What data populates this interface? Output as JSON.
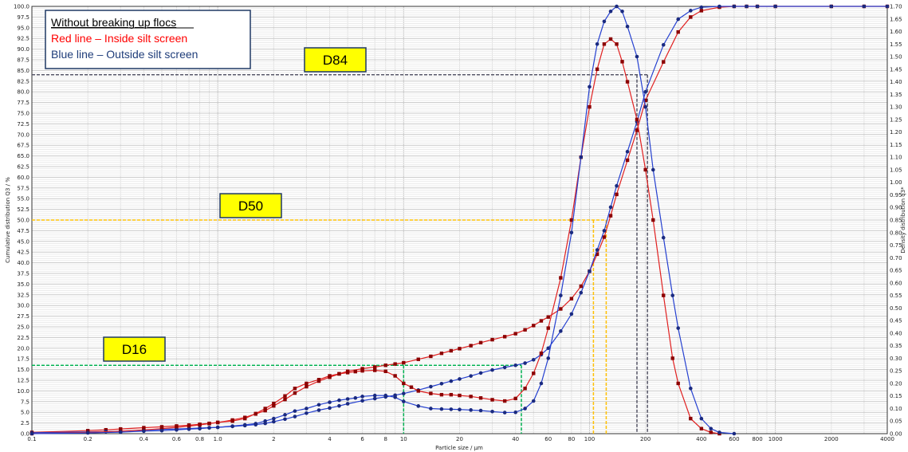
{
  "chart_data": {
    "type": "line",
    "xlabel": "Particle size / µm",
    "ylabel_left": "Cumulative distribution Q3 / %",
    "ylabel_right": "Density distribution q3*",
    "x_scale": "log",
    "xlim": [
      0.1,
      4000
    ],
    "ylim_left": [
      0,
      100
    ],
    "ylim_right": [
      0,
      1.7
    ],
    "x_tick_labels": [
      "0.1",
      "0.2",
      "0.4",
      "0.6",
      "0.8",
      "1.0",
      "2",
      "4",
      "6",
      "8",
      "10",
      "20",
      "40",
      "60",
      "80",
      "100",
      "200",
      "400",
      "600",
      "800",
      "1000",
      "2000",
      "4000"
    ],
    "legend": {
      "title": "Without breaking up flocs",
      "entries": [
        "Red line – Inside silt screen",
        "Blue line – Outside silt screen"
      ],
      "colors": [
        "#ff0000",
        "#1f3d7a"
      ]
    },
    "grid": true,
    "series": [
      {
        "kind": "cumulative",
        "axis": "left",
        "color": "#c00000",
        "marker": "square",
        "x": [
          0.1,
          0.2,
          0.25,
          0.3,
          0.4,
          0.5,
          0.6,
          0.7,
          0.8,
          0.9,
          1.0,
          1.2,
          1.4,
          1.6,
          1.8,
          2,
          2.3,
          2.6,
          3,
          3.5,
          4,
          4.5,
          5,
          6,
          7,
          8,
          9,
          10,
          12,
          14,
          16,
          18,
          20,
          23,
          26,
          30,
          35,
          40,
          45,
          50,
          55,
          60,
          70,
          80,
          90,
          100,
          110,
          120,
          130,
          140,
          160,
          180,
          200,
          250,
          300,
          350,
          400,
          500,
          600,
          700,
          800,
          1000,
          2000,
          3000,
          4000
        ],
        "y": [
          0.3,
          0.7,
          0.9,
          1.1,
          1.4,
          1.6,
          1.8,
          2.0,
          2.2,
          2.4,
          2.6,
          3.2,
          3.8,
          4.6,
          5.4,
          6.5,
          8.0,
          9.5,
          11.0,
          12.3,
          13.2,
          14.0,
          14.6,
          15.2,
          15.6,
          16.0,
          16.3,
          16.6,
          17.4,
          18.1,
          18.8,
          19.4,
          19.9,
          20.6,
          21.3,
          22.0,
          22.7,
          23.4,
          24.3,
          25.3,
          26.4,
          27.3,
          29.2,
          31.6,
          34.5,
          38.0,
          42.0,
          46.0,
          51.0,
          56.0,
          64.0,
          71.0,
          78.0,
          87.0,
          94.0,
          97.5,
          99.0,
          99.8,
          100,
          100,
          100,
          100,
          100,
          100,
          100
        ]
      },
      {
        "kind": "cumulative",
        "axis": "left",
        "color": "#1f3d7a",
        "marker": "circle",
        "x": [
          0.1,
          0.2,
          0.25,
          0.3,
          0.4,
          0.5,
          0.6,
          0.7,
          0.8,
          0.9,
          1.0,
          1.2,
          1.4,
          1.6,
          1.8,
          2,
          2.3,
          2.6,
          3,
          3.5,
          4,
          4.5,
          5,
          6,
          7,
          8,
          9,
          10,
          12,
          14,
          16,
          18,
          20,
          23,
          26,
          30,
          35,
          40,
          45,
          50,
          55,
          60,
          70,
          80,
          90,
          100,
          110,
          120,
          130,
          140,
          160,
          180,
          200,
          250,
          300,
          350,
          400,
          500,
          600,
          700,
          800,
          1000,
          2000,
          3000,
          4000
        ],
        "y": [
          0.2,
          0.4,
          0.5,
          0.6,
          0.8,
          1.0,
          1.1,
          1.2,
          1.3,
          1.4,
          1.5,
          1.7,
          1.9,
          2.1,
          2.4,
          2.8,
          3.4,
          4.0,
          4.8,
          5.5,
          6.0,
          6.5,
          7.0,
          7.7,
          8.2,
          8.6,
          9.0,
          9.4,
          10.2,
          11.0,
          11.7,
          12.3,
          12.8,
          13.5,
          14.2,
          14.9,
          15.5,
          16.0,
          16.5,
          17.3,
          18.5,
          20.0,
          24.0,
          28.0,
          33.0,
          38.0,
          43.0,
          47.5,
          53.0,
          58.0,
          66.0,
          73.0,
          80.0,
          91.0,
          97.0,
          99.0,
          99.8,
          100,
          100,
          100,
          100,
          100,
          100,
          100,
          100
        ]
      },
      {
        "kind": "density",
        "axis": "right",
        "color": "#c00000",
        "marker": "square",
        "x": [
          0.1,
          0.2,
          0.3,
          0.4,
          0.5,
          0.6,
          0.7,
          0.8,
          0.9,
          1.0,
          1.2,
          1.4,
          1.6,
          1.8,
          2,
          2.3,
          2.6,
          3,
          3.5,
          4,
          4.5,
          5,
          5.5,
          6,
          7,
          8,
          9,
          10,
          11,
          12,
          14,
          16,
          18,
          20,
          23,
          26,
          30,
          35,
          40,
          45,
          50,
          55,
          60,
          70,
          80,
          90,
          100,
          110,
          120,
          130,
          140,
          150,
          160,
          180,
          200,
          220,
          250,
          280,
          300,
          350,
          400,
          450,
          500
        ],
        "y": [
          0,
          0.005,
          0.01,
          0.015,
          0.02,
          0.025,
          0.03,
          0.035,
          0.04,
          0.045,
          0.05,
          0.06,
          0.08,
          0.1,
          0.12,
          0.15,
          0.18,
          0.2,
          0.215,
          0.23,
          0.238,
          0.243,
          0.247,
          0.25,
          0.252,
          0.248,
          0.23,
          0.2,
          0.185,
          0.17,
          0.16,
          0.155,
          0.155,
          0.152,
          0.148,
          0.142,
          0.135,
          0.13,
          0.14,
          0.18,
          0.24,
          0.32,
          0.42,
          0.62,
          0.85,
          1.1,
          1.3,
          1.45,
          1.55,
          1.57,
          1.55,
          1.48,
          1.4,
          1.25,
          1.05,
          0.85,
          0.55,
          0.3,
          0.2,
          0.06,
          0.02,
          0.005,
          0
        ]
      },
      {
        "kind": "density",
        "axis": "right",
        "color": "#1f3d7a",
        "marker": "circle",
        "x": [
          0.1,
          0.2,
          0.3,
          0.4,
          0.5,
          0.6,
          0.7,
          0.8,
          0.9,
          1.0,
          1.2,
          1.4,
          1.6,
          1.8,
          2,
          2.3,
          2.6,
          3,
          3.5,
          4,
          4.5,
          5,
          5.5,
          6,
          7,
          8,
          9,
          10,
          12,
          14,
          16,
          18,
          20,
          23,
          26,
          30,
          35,
          40,
          45,
          50,
          55,
          60,
          70,
          80,
          90,
          100,
          110,
          120,
          130,
          140,
          150,
          160,
          180,
          200,
          220,
          250,
          280,
          300,
          350,
          400,
          450,
          500,
          600
        ],
        "y": [
          0,
          0.003,
          0.006,
          0.01,
          0.012,
          0.015,
          0.018,
          0.02,
          0.023,
          0.025,
          0.03,
          0.035,
          0.04,
          0.05,
          0.06,
          0.075,
          0.09,
          0.1,
          0.115,
          0.125,
          0.133,
          0.138,
          0.142,
          0.148,
          0.152,
          0.152,
          0.145,
          0.128,
          0.11,
          0.1,
          0.098,
          0.097,
          0.096,
          0.094,
          0.092,
          0.088,
          0.084,
          0.085,
          0.1,
          0.13,
          0.2,
          0.3,
          0.55,
          0.8,
          1.1,
          1.38,
          1.55,
          1.64,
          1.68,
          1.7,
          1.68,
          1.62,
          1.5,
          1.3,
          1.05,
          0.78,
          0.55,
          0.42,
          0.18,
          0.06,
          0.02,
          0.005,
          0
        ]
      }
    ],
    "annotations": [
      {
        "label": "D84",
        "y": 84,
        "x_points": [
          180,
          205
        ],
        "line_color": "#555566",
        "box_color": "#ffff00"
      },
      {
        "label": "D50",
        "y": 50,
        "x_points": [
          105,
          123
        ],
        "line_color": "#ffc000",
        "box_color": "#ffff00"
      },
      {
        "label": "D16",
        "y": 16,
        "x_points": [
          10,
          43
        ],
        "line_color": "#00b050",
        "box_color": "#ffff00"
      }
    ]
  }
}
